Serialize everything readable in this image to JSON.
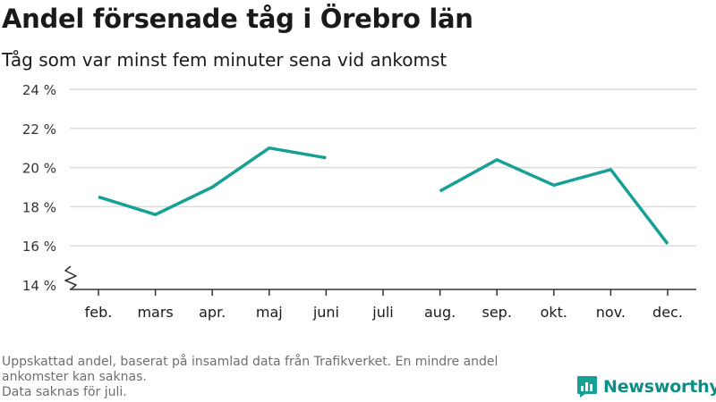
{
  "header": {
    "title": "Andel försenade tåg i Örebro län",
    "subtitle": "Tåg som var minst fem minuter sena vid ankomst"
  },
  "footnote": {
    "line1": "Uppskattad andel, baserat på insamlad data från Trafikverket. En mindre andel ankomster kan saknas.",
    "line2": "Data saknas för juli."
  },
  "brand": {
    "name": "Newsworthy",
    "icon": "bar-chart-bubble-icon"
  },
  "colors": {
    "line": "#16a096",
    "grid": "#dcdcdc",
    "axis": "#333333",
    "brand": "#0d8f86"
  },
  "chart_data": {
    "type": "line",
    "title": "Andel försenade tåg i Örebro län",
    "subtitle": "Tåg som var minst fem minuter sena vid ankomst",
    "categories": [
      "feb.",
      "mars",
      "apr.",
      "maj",
      "juni",
      "juli",
      "aug.",
      "sep.",
      "okt.",
      "nov.",
      "dec."
    ],
    "series": [
      {
        "values": [
          18.5,
          17.6,
          19.0,
          21.0,
          20.5,
          null,
          18.8,
          20.4,
          19.1,
          19.9,
          16.1
        ]
      }
    ],
    "yticks": [
      14,
      16,
      18,
      20,
      22,
      24
    ],
    "ytick_labels": [
      "14 %",
      "16 %",
      "18 %",
      "20 %",
      "22 %",
      "24 %"
    ],
    "ylim": [
      14,
      24
    ],
    "grid": true,
    "axis_break": true,
    "xlabel": "",
    "ylabel": ""
  }
}
